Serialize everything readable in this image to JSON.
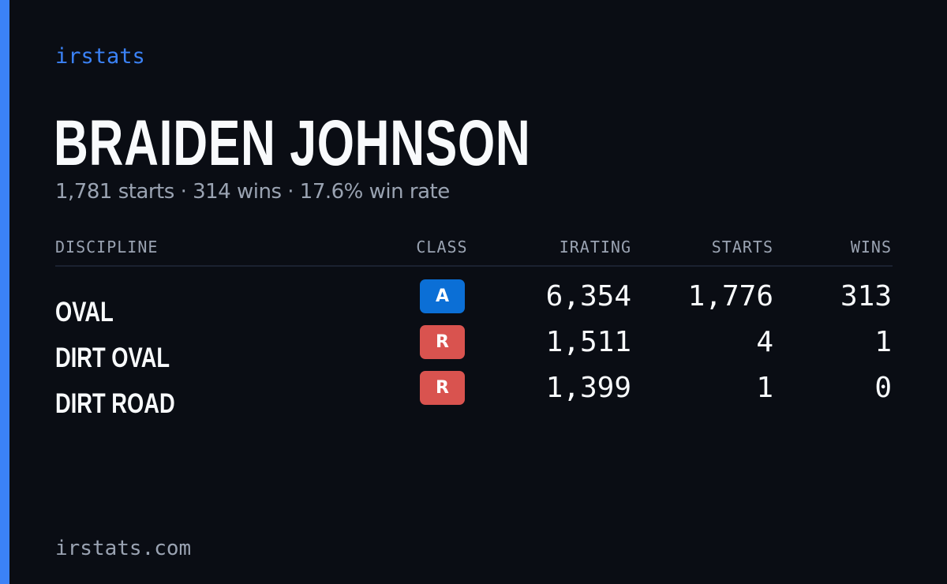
{
  "brand": "irstats",
  "driver": {
    "name": "BRAIDEN JOHNSON",
    "summary": "1,781 starts · 314 wins · 17.6% win rate"
  },
  "table": {
    "headers": {
      "discipline": "DISCIPLINE",
      "class": "CLASS",
      "irating": "IRATING",
      "starts": "STARTS",
      "wins": "WINS"
    },
    "rows": [
      {
        "discipline": "OVAL",
        "class": "A",
        "class_color": "#0b6fd6",
        "irating": "6,354",
        "starts": "1,776",
        "wins": "313"
      },
      {
        "discipline": "DIRT OVAL",
        "class": "R",
        "class_color": "#d9534f",
        "irating": "1,511",
        "starts": "4",
        "wins": "1"
      },
      {
        "discipline": "DIRT ROAD",
        "class": "R",
        "class_color": "#d9534f",
        "irating": "1,399",
        "starts": "1",
        "wins": "0"
      }
    ]
  },
  "footer": "irstats.com",
  "colors": {
    "background": "#0a0d14",
    "accent": "#3b82f6",
    "muted": "#9aa3b2"
  }
}
